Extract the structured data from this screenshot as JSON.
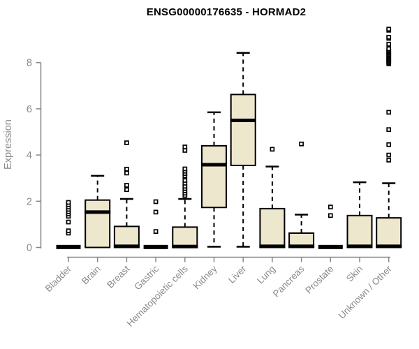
{
  "chart_data": {
    "type": "boxplot",
    "title": "ENSG00000176635 - HORMAD2",
    "ylabel": "Expression",
    "xlabel": "",
    "ylim": [
      0,
      9.6
    ],
    "yticks": [
      0,
      2,
      4,
      6,
      8
    ],
    "grid": false,
    "legend": null,
    "colors": {
      "box_fill": "#ede7ce",
      "box_border": "#000000",
      "median": "#000000",
      "whisker": "#000000",
      "axis": "#878787",
      "tick_text": "#8a8a8a",
      "title_text": "#000000",
      "background": "#ffffff"
    },
    "boxes": [
      {
        "category": "Bladder",
        "q1": 0,
        "median": 0.02,
        "q3": 0.03,
        "whisker_low": 0,
        "whisker_high": 0.03,
        "outliers": [
          0.62,
          0.72,
          1.1,
          1.35,
          1.45,
          1.55,
          1.65,
          1.75,
          1.85,
          1.95
        ]
      },
      {
        "category": "Brain",
        "q1": 0,
        "median": 1.53,
        "q3": 2.05,
        "whisker_low": 0,
        "whisker_high": 3.1,
        "outliers": []
      },
      {
        "category": "Breast",
        "q1": 0,
        "median": 0.05,
        "q3": 0.91,
        "whisker_low": 0,
        "whisker_high": 2.1,
        "outliers": [
          2.5,
          2.69,
          3.22,
          3.39,
          4.53
        ]
      },
      {
        "category": "Gastric",
        "q1": 0,
        "median": 0.02,
        "q3": 0.03,
        "whisker_low": 0,
        "whisker_high": 0.03,
        "outliers": [
          0.69,
          1.53,
          1.98
        ]
      },
      {
        "category": "Hematopoietic cells",
        "q1": 0,
        "median": 0.04,
        "q3": 0.88,
        "whisker_low": 0,
        "whisker_high": 2.1,
        "outliers": [
          2.25,
          2.35,
          2.45,
          2.55,
          2.65,
          2.78,
          2.9,
          3.1,
          3.2,
          3.3,
          3.4,
          4.2,
          4.35
        ]
      },
      {
        "category": "Kidney",
        "q1": 1.73,
        "median": 3.58,
        "q3": 4.4,
        "whisker_low": 0.03,
        "whisker_high": 5.85,
        "outliers": []
      },
      {
        "category": "Liver",
        "q1": 3.55,
        "median": 5.5,
        "q3": 6.62,
        "whisker_low": 0.03,
        "whisker_high": 8.42,
        "outliers": []
      },
      {
        "category": "Lung",
        "q1": 0,
        "median": 0.05,
        "q3": 1.68,
        "whisker_low": 0,
        "whisker_high": 3.5,
        "outliers": [
          4.25
        ]
      },
      {
        "category": "Pancreas",
        "q1": 0,
        "median": 0.05,
        "q3": 0.62,
        "whisker_low": 0,
        "whisker_high": 1.42,
        "outliers": [
          4.48
        ]
      },
      {
        "category": "Prostate",
        "q1": 0,
        "median": 0.02,
        "q3": 0.03,
        "whisker_low": 0,
        "whisker_high": 0.03,
        "outliers": [
          1.38,
          1.75
        ]
      },
      {
        "category": "Skin",
        "q1": 0,
        "median": 0.05,
        "q3": 1.38,
        "whisker_low": 0,
        "whisker_high": 2.82,
        "outliers": []
      },
      {
        "category": "Unknown / Other",
        "q1": 0,
        "median": 0.05,
        "q3": 1.28,
        "whisker_low": 0,
        "whisker_high": 2.78,
        "outliers": [
          3.78,
          4.0,
          4.45,
          5.1,
          5.85,
          7.95,
          8.0,
          8.05,
          8.1,
          8.15,
          8.2,
          8.25,
          8.3,
          8.35,
          8.4,
          8.45,
          8.5,
          8.55,
          8.6,
          8.8,
          9.05,
          9.1,
          9.4,
          9.45
        ]
      }
    ]
  }
}
